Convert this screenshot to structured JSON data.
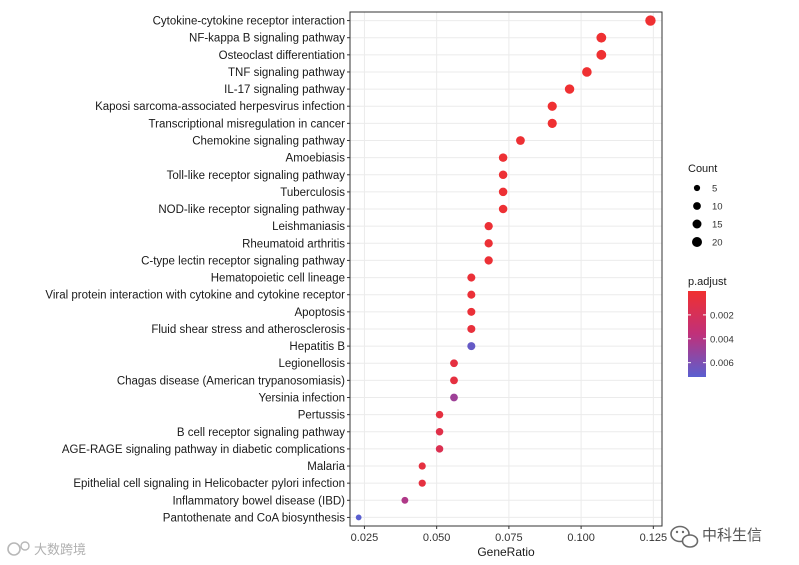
{
  "chart_data": {
    "type": "scatter",
    "title": "",
    "xlabel": "GeneRatio",
    "ylabel": "",
    "xlim": [
      0.02,
      0.128
    ],
    "x_ticks": [
      0.025,
      0.05,
      0.075,
      0.1,
      0.125
    ],
    "x_tick_labels": [
      "0.025",
      "0.050",
      "0.075",
      "0.100",
      "0.125"
    ],
    "grid": true,
    "legend_position": "right",
    "categories": [
      "Cytokine-cytokine receptor interaction",
      "NF-kappa B signaling pathway",
      "Osteoclast differentiation",
      "TNF signaling pathway",
      "IL-17 signaling pathway",
      "Kaposi sarcoma-associated herpesvirus infection",
      "Transcriptional misregulation in cancer",
      "Chemokine signaling pathway",
      "Amoebiasis",
      "Toll-like receptor signaling pathway",
      "Tuberculosis",
      "NOD-like receptor signaling pathway",
      "Leishmaniasis",
      "Rheumatoid arthritis",
      "C-type lectin receptor signaling pathway",
      "Hematopoietic cell lineage",
      "Viral protein interaction with cytokine and cytokine receptor",
      "Apoptosis",
      "Fluid shear stress and atherosclerosis",
      "Hepatitis B",
      "Legionellosis",
      "Chagas disease (American trypanosomiasis)",
      "Yersinia infection",
      "Pertussis",
      "B cell receptor signaling pathway",
      "AGE-RAGE signaling pathway in diabetic complications",
      "Malaria",
      "Epithelial cell signaling in Helicobacter pylori infection",
      "Inflammatory bowel disease (IBD)",
      "Pantothenate and CoA biosynthesis"
    ],
    "gene_ratio": [
      0.124,
      0.107,
      0.107,
      0.102,
      0.096,
      0.09,
      0.09,
      0.079,
      0.073,
      0.073,
      0.073,
      0.073,
      0.068,
      0.068,
      0.068,
      0.062,
      0.062,
      0.062,
      0.062,
      0.062,
      0.056,
      0.056,
      0.056,
      0.051,
      0.051,
      0.051,
      0.045,
      0.045,
      0.039,
      0.023
    ],
    "count": [
      22,
      19,
      19,
      18,
      17,
      16,
      16,
      14,
      13,
      13,
      13,
      13,
      12,
      12,
      12,
      11,
      11,
      11,
      11,
      11,
      10,
      10,
      10,
      9,
      9,
      9,
      8,
      8,
      7,
      4
    ],
    "p_adjust": [
      0.0001,
      0.0001,
      0.0001,
      0.0001,
      0.0001,
      0.0001,
      0.0001,
      0.0002,
      0.0002,
      0.0002,
      0.0002,
      0.0002,
      0.0003,
      0.0003,
      0.0003,
      0.0004,
      0.0004,
      0.0004,
      0.0006,
      0.0068,
      0.0008,
      0.0008,
      0.0048,
      0.0008,
      0.0012,
      0.0016,
      0.0008,
      0.0008,
      0.0042,
      0.0072
    ],
    "size_legend": {
      "title": "Count",
      "values": [
        5,
        10,
        15,
        20
      ],
      "labels": [
        "5",
        "10",
        "15",
        "20"
      ]
    },
    "color_legend": {
      "title": "p.adjust",
      "min": 0.0,
      "max": 0.0072,
      "ticks": [
        0.002,
        0.004,
        0.006
      ],
      "tick_labels": [
        "0.002",
        "0.004",
        "0.006"
      ],
      "low_color": "#f03030",
      "mid_color": "#c0307a",
      "high_color": "#5a5fd0"
    },
    "colors": {
      "panel_border": "#333333",
      "grid": "#ebebeb",
      "point_low": "#f03030",
      "point_high": "#5a5fd0"
    }
  },
  "watermarks": {
    "left_text": "大数跨境",
    "right_text": "中科生信",
    "left_icon": "brand-logo-icon",
    "right_icon": "wechat-icon"
  }
}
